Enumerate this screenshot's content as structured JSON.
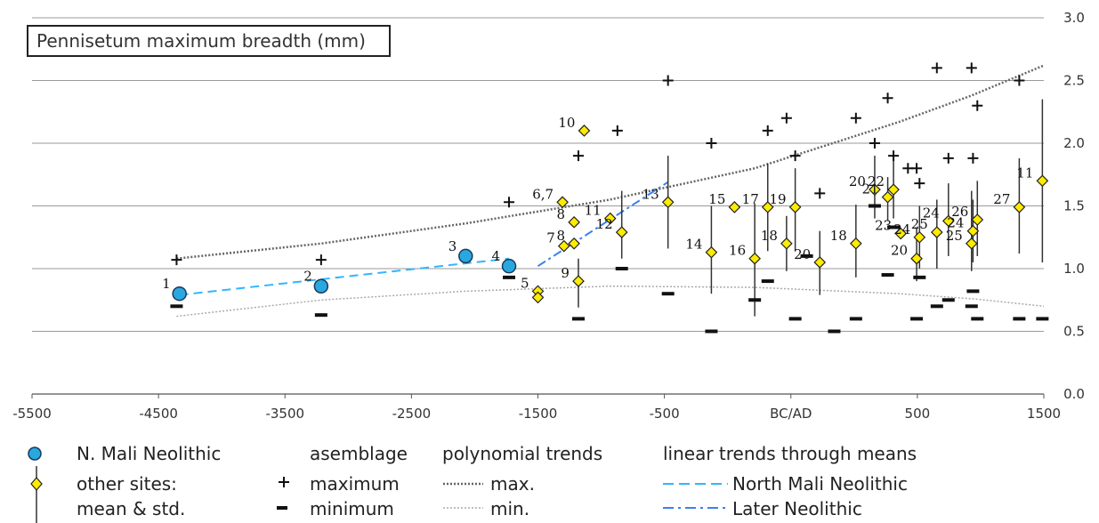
{
  "chart_data": {
    "type": "scatter",
    "title": "Pennisetum maximum breadth (mm)",
    "x_ticks": [
      "-5500",
      "-4500",
      "-3500",
      "-2500",
      "-1500",
      "-500",
      "BC/AD",
      "500",
      "1500"
    ],
    "y_ticks": [
      "0.0",
      "0.5",
      "1.0",
      "1.5",
      "2.0",
      "2.5",
      "3.0"
    ],
    "xlim": [
      -5500,
      1500
    ],
    "ylim": [
      0,
      3
    ],
    "grid": "horizontal",
    "n_mali_neolithic": [
      {
        "x": -4480,
        "y": 0.8,
        "label": "1"
      },
      {
        "x": -3500,
        "y": 0.86,
        "label": "2"
      },
      {
        "x": -2500,
        "y": 1.1,
        "label": "3"
      },
      {
        "x": -2200,
        "y": 1.02,
        "label": "4"
      }
    ],
    "other_sites": [
      {
        "x": -2000,
        "y": 0.82,
        "label": "5"
      },
      {
        "x": -2000,
        "y": 0.77,
        "label": ""
      },
      {
        "x": -1830,
        "y": 1.53,
        "label": "6,7"
      },
      {
        "x": -1820,
        "y": 1.18,
        "label": "7"
      },
      {
        "x": -1750,
        "y": 1.37,
        "label": "8"
      },
      {
        "x": -1750,
        "y": 1.2,
        "label": "8"
      },
      {
        "x": -1720,
        "y": 0.9,
        "label": "9",
        "sd": [
          0.69,
          1.08
        ]
      },
      {
        "x": -1680,
        "y": 2.1,
        "label": "10"
      },
      {
        "x": -1500,
        "y": 1.4,
        "label": "11"
      },
      {
        "x": -1420,
        "y": 1.29,
        "label": "12",
        "sd": [
          1.08,
          1.62
        ]
      },
      {
        "x": -1100,
        "y": 1.53,
        "label": "13",
        "sd": [
          1.16,
          1.9
        ]
      },
      {
        "x": -800,
        "y": 1.13,
        "label": "14",
        "sd": [
          0.8,
          1.5
        ]
      },
      {
        "x": -640,
        "y": 1.49,
        "label": "15"
      },
      {
        "x": -500,
        "y": 1.08,
        "label": "16",
        "sd": [
          0.62,
          1.52
        ]
      },
      {
        "x": -410,
        "y": 1.49,
        "label": "17",
        "sd": [
          1.14,
          1.84
        ]
      },
      {
        "x": -280,
        "y": 1.2,
        "label": "18",
        "sd": [
          0.98,
          1.42
        ]
      },
      {
        "x": -220,
        "y": 1.49,
        "label": "19",
        "sd": [
          1.14,
          1.8
        ]
      },
      {
        "x": -50,
        "y": 1.05,
        "label": "20",
        "sd": [
          0.79,
          1.3
        ]
      },
      {
        "x": 200,
        "y": 1.2,
        "label": "18",
        "sd": [
          0.93,
          1.51
        ]
      },
      {
        "x": 330,
        "y": 1.63,
        "label": "20",
        "sd": [
          1.4,
          1.9
        ]
      },
      {
        "x": 420,
        "y": 1.57,
        "label": "21",
        "sd": [
          1.38,
          1.73
        ]
      },
      {
        "x": 460,
        "y": 1.63,
        "label": "22",
        "sd": [
          1.4,
          1.88
        ]
      },
      {
        "x": 510,
        "y": 1.28,
        "label": "23"
      },
      {
        "x": 620,
        "y": 1.08,
        "label": "20",
        "sd": [
          0.9,
          1.33
        ]
      },
      {
        "x": 640,
        "y": 1.25,
        "label": "24",
        "sd": [
          1.0,
          1.5
        ]
      },
      {
        "x": 760,
        "y": 1.29,
        "label": "25",
        "sd": [
          1.0,
          1.55
        ]
      },
      {
        "x": 840,
        "y": 1.38,
        "label": "24",
        "sd": [
          1.1,
          1.68
        ]
      },
      {
        "x": 1000,
        "y": 1.2,
        "label": "25",
        "sd": [
          0.98,
          1.62
        ]
      },
      {
        "x": 1010,
        "y": 1.3,
        "label": "24",
        "sd": [
          1.05,
          1.55
        ]
      },
      {
        "x": 1040,
        "y": 1.39,
        "label": "26",
        "sd": [
          1.1,
          1.7
        ]
      },
      {
        "x": 1330,
        "y": 1.49,
        "label": "27",
        "sd": [
          1.12,
          1.88
        ]
      },
      {
        "x": 1490,
        "y": 1.7,
        "label": "11",
        "sd": [
          1.05,
          2.35
        ]
      }
    ],
    "maximum": [
      {
        "x": -4500,
        "y": 1.07
      },
      {
        "x": -3500,
        "y": 1.07
      },
      {
        "x": -2200,
        "y": 1.53
      },
      {
        "x": -1720,
        "y": 1.9
      },
      {
        "x": -1450,
        "y": 2.1
      },
      {
        "x": -1100,
        "y": 2.5
      },
      {
        "x": -800,
        "y": 2.0
      },
      {
        "x": -410,
        "y": 2.1
      },
      {
        "x": -280,
        "y": 2.2
      },
      {
        "x": -220,
        "y": 1.9
      },
      {
        "x": -50,
        "y": 1.6
      },
      {
        "x": 200,
        "y": 2.2
      },
      {
        "x": 330,
        "y": 2.0
      },
      {
        "x": 420,
        "y": 2.36
      },
      {
        "x": 460,
        "y": 1.9
      },
      {
        "x": 560,
        "y": 1.8
      },
      {
        "x": 620,
        "y": 1.8
      },
      {
        "x": 640,
        "y": 1.68
      },
      {
        "x": 760,
        "y": 2.6
      },
      {
        "x": 840,
        "y": 1.88
      },
      {
        "x": 1000,
        "y": 2.6
      },
      {
        "x": 1010,
        "y": 1.88
      },
      {
        "x": 1040,
        "y": 2.3
      },
      {
        "x": 1330,
        "y": 2.5
      }
    ],
    "minimum": [
      {
        "x": -4500,
        "y": 0.7
      },
      {
        "x": -3500,
        "y": 0.63
      },
      {
        "x": -2200,
        "y": 0.93
      },
      {
        "x": -1720,
        "y": 0.6
      },
      {
        "x": -1420,
        "y": 1.0
      },
      {
        "x": -1100,
        "y": 0.8
      },
      {
        "x": -800,
        "y": 0.5
      },
      {
        "x": -500,
        "y": 0.75
      },
      {
        "x": -410,
        "y": 0.9
      },
      {
        "x": -220,
        "y": 0.6
      },
      {
        "x": -140,
        "y": 1.1
      },
      {
        "x": 50,
        "y": 0.5
      },
      {
        "x": 200,
        "y": 0.6
      },
      {
        "x": 330,
        "y": 1.5
      },
      {
        "x": 420,
        "y": 0.95
      },
      {
        "x": 460,
        "y": 1.33
      },
      {
        "x": 620,
        "y": 0.6
      },
      {
        "x": 640,
        "y": 0.93
      },
      {
        "x": 760,
        "y": 0.7
      },
      {
        "x": 840,
        "y": 0.75
      },
      {
        "x": 1000,
        "y": 0.7
      },
      {
        "x": 1010,
        "y": 0.82
      },
      {
        "x": 1040,
        "y": 0.6
      },
      {
        "x": 1330,
        "y": 0.6
      },
      {
        "x": 1490,
        "y": 0.6
      }
    ],
    "trend_max": [
      {
        "x": -4500,
        "y": 1.08
      },
      {
        "x": -3500,
        "y": 1.2
      },
      {
        "x": -2500,
        "y": 1.36
      },
      {
        "x": -1500,
        "y": 1.55
      },
      {
        "x": -500,
        "y": 1.8
      },
      {
        "x": 500,
        "y": 2.17
      },
      {
        "x": 1000,
        "y": 2.38
      },
      {
        "x": 1500,
        "y": 2.62
      }
    ],
    "trend_min": [
      {
        "x": -4500,
        "y": 0.62
      },
      {
        "x": -3500,
        "y": 0.75
      },
      {
        "x": -2500,
        "y": 0.82
      },
      {
        "x": -1500,
        "y": 0.86
      },
      {
        "x": -500,
        "y": 0.85
      },
      {
        "x": 500,
        "y": 0.8
      },
      {
        "x": 1000,
        "y": 0.76
      },
      {
        "x": 1500,
        "y": 0.7
      }
    ],
    "trend_north_mali": [
      {
        "x": -4480,
        "y": 0.79
      },
      {
        "x": -2200,
        "y": 1.08
      }
    ],
    "trend_later_neolithic": [
      {
        "x": -2000,
        "y": 1.02
      },
      {
        "x": -1100,
        "y": 1.69
      }
    ],
    "colors": {
      "n_mali": "#29a8e0",
      "other_sites": "#ffeb00",
      "trend_north_mali": "#33b5ff",
      "trend_later": "#3c7ff0",
      "trend_poly": "#666666"
    }
  },
  "legend": {
    "n_mali": "N. Mali Neolithic",
    "other_line1": "other sites:",
    "other_line2": "mean & std.",
    "assemblage_header": "asemblage",
    "maximum": "maximum",
    "minimum": "minimum",
    "poly_header": "polynomial trends",
    "poly_max": "max.",
    "poly_min": "min.",
    "linear_header": "linear trends through means",
    "linear_north": "North Mali Neolithic",
    "linear_later": "Later Neolithic"
  }
}
